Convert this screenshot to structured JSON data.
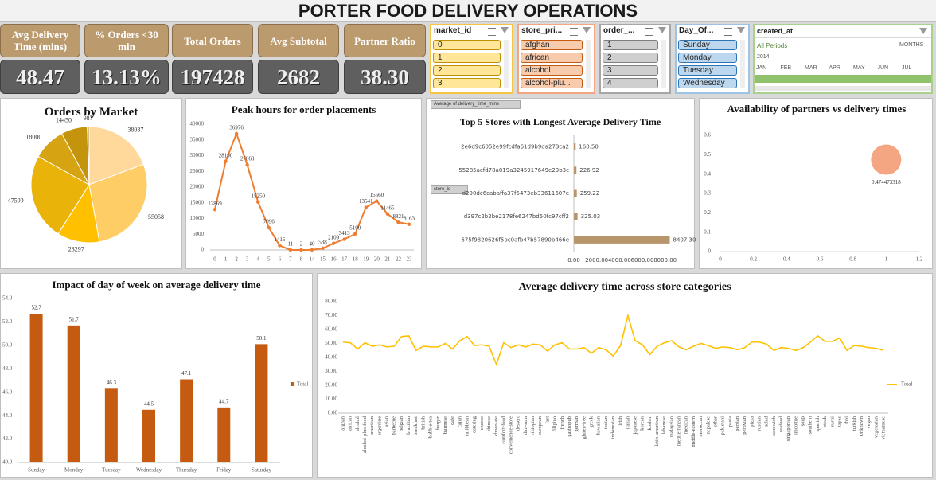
{
  "title": "PORTER FOOD DELIVERY OPERATIONS",
  "kpis": [
    {
      "label": "Avg Delivery Time (mins)",
      "value": "48.47"
    },
    {
      "label": "% Orders <30 min",
      "value": "13.13%"
    },
    {
      "label": "Total Orders",
      "value": "197428"
    },
    {
      "label": "Avg Subtotal",
      "value": "2682"
    },
    {
      "label": "Partner Ratio",
      "value": "38.30"
    }
  ],
  "slicers": [
    {
      "field": "market_id",
      "items": [
        "0",
        "1",
        "2",
        "3"
      ]
    },
    {
      "field": "store_pri...",
      "items": [
        "afghan",
        "african",
        "alcohol",
        "alcohol-plu..."
      ]
    },
    {
      "field": "order_...",
      "items": [
        "1",
        "2",
        "3",
        "4"
      ]
    },
    {
      "field": "Day_Of...",
      "items": [
        "Sunday",
        "Monday",
        "Tuesday",
        "Wednesday"
      ]
    }
  ],
  "timeline": {
    "field": "created_at",
    "period": "All Periods",
    "level": "MONTHS",
    "year": "2014",
    "months": [
      "JAN",
      "FEB",
      "MAR",
      "APR",
      "MAY",
      "JUN",
      "JUL"
    ]
  },
  "chart_data": [
    {
      "type": "pie",
      "title": "Orders by Market",
      "values": [
        38037,
        55058,
        23297,
        47599,
        18000,
        14450,
        987
      ],
      "colors": [
        "#ffd99c",
        "#ffcd66",
        "#ffc000",
        "#e9b30a",
        "#d6a312",
        "#c4950c",
        "#a87f05"
      ]
    },
    {
      "type": "line",
      "title": "Peak hours for order placements",
      "categories": [
        0,
        1,
        2,
        3,
        4,
        5,
        6,
        7,
        8,
        14,
        15,
        16,
        17,
        18,
        19,
        20,
        21,
        22,
        23
      ],
      "values": [
        12869,
        28190,
        36976,
        27068,
        15250,
        7096,
        1416,
        11,
        2,
        40,
        538,
        2109,
        3413,
        5100,
        13541,
        15560,
        11465,
        8821,
        8163
      ],
      "color": "#ed7d31",
      "data_labels": true,
      "ylim": [
        0,
        40000
      ],
      "yticks": [
        0,
        5000,
        10000,
        15000,
        20000,
        25000,
        30000,
        35000,
        40000
      ]
    },
    {
      "type": "hbar",
      "title": "Top 5 Stores with Longest Average Delivery Time",
      "value_field": "Average of delivery_time_mins",
      "category_field": "store_id",
      "categories": [
        "2e6d9c6052e99fcdfa61d9b9da273ca2",
        "55285acfd78a019a3245917649e29b3c",
        "d290dc6cabaffa37f5473eb33611607e",
        "d397c2b2be2178fe6247bd50fc97cff2",
        "675f9820626f5bc0afb47b57890b466e"
      ],
      "values": [
        160.5,
        226.92,
        259.22,
        325.03,
        8407.3
      ],
      "value_labels": [
        "160.50",
        "226.92",
        "259.22",
        "325.03",
        "8407.30"
      ],
      "color": "#b8966b",
      "xlim": [
        0,
        9000
      ],
      "xticks": [
        {
          "value": 0,
          "label": "0.00"
        },
        {
          "value": 2000,
          "label": "2000.00"
        },
        {
          "value": 4000,
          "label": "4000.00"
        },
        {
          "value": 6000,
          "label": "6000.00"
        },
        {
          "value": 8000,
          "label": "8000.00"
        }
      ]
    },
    {
      "type": "scatter",
      "title": "Availability of partners vs delivery times",
      "x": [
        1
      ],
      "values": [
        0.474473318
      ],
      "color": "#f4a582",
      "xlim": [
        0,
        1.2
      ],
      "xticks": [
        0,
        0.2,
        0.4,
        0.6,
        0.8,
        1,
        1.2
      ],
      "ylim": [
        0,
        0.6
      ],
      "yticks": [
        0,
        0.1,
        0.2,
        0.3,
        0.4,
        0.5,
        0.6
      ]
    },
    {
      "type": "bar",
      "title": "Impact of day of week on average delivery time",
      "categories": [
        "Sunday",
        "Monday",
        "Tuesday",
        "Wednesday",
        "Thursday",
        "Friday",
        "Saturday"
      ],
      "series": [
        {
          "name": "Total",
          "color": "#c55a11",
          "values": [
            52.7,
            51.7,
            46.3,
            44.5,
            47.1,
            44.7,
            50.1
          ]
        }
      ],
      "ylim": [
        40,
        54
      ],
      "yticks": [
        {
          "value": 40,
          "label": "40.0"
        },
        {
          "value": 42,
          "label": "42.0"
        },
        {
          "value": 44,
          "label": "44.0"
        },
        {
          "value": 46,
          "label": "46.0"
        },
        {
          "value": 48,
          "label": "48.0"
        },
        {
          "value": 50,
          "label": "50.0"
        },
        {
          "value": 52,
          "label": "52.0"
        },
        {
          "value": 54,
          "label": "54.0"
        }
      ]
    },
    {
      "type": "line",
      "title": "Average delivery time across store categories",
      "categories": [
        "afghan",
        "african",
        "alcohol",
        "alcohol-plus-food",
        "american",
        "argentine",
        "asian",
        "barbecue",
        "belgian",
        "brazilian",
        "breakfast",
        "british",
        "bubble-tea",
        "burger",
        "burmese",
        "cafe",
        "cajun",
        "caribbean",
        "catering",
        "cheese",
        "chinese",
        "chocolate",
        "comfort-food",
        "convenience-store",
        "dessert",
        "dim-sum",
        "ethiopian",
        "european",
        "fast",
        "filipino",
        "french",
        "gastropub",
        "german",
        "gluten-free",
        "greek",
        "hawaiian",
        "indian",
        "indonesian",
        "irish",
        "italian",
        "japanese",
        "korean",
        "kosher",
        "latin-american",
        "lebanese",
        "malaysian",
        "mediterranean",
        "mexican",
        "middle-eastern",
        "moroccan",
        "nepalese",
        "other",
        "pakistani",
        "pasta",
        "persian",
        "peruvian",
        "pizza",
        "russian",
        "salad",
        "sandwich",
        "seafood",
        "singaporean",
        "smoothie",
        "soup",
        "southern",
        "spanish",
        "steak",
        "sushi",
        "tapas",
        "thai",
        "turkish",
        "Unknown",
        "vegan",
        "vegetarian",
        "vietnamese"
      ],
      "series": [
        {
          "name": "Total",
          "color": "#ffc000",
          "values": [
            51,
            50.5,
            46,
            50.5,
            48,
            49,
            47.5,
            48,
            55,
            55.5,
            45,
            48,
            47.5,
            47.5,
            50,
            46,
            52,
            55,
            48.5,
            49,
            48,
            35,
            50.5,
            47,
            49,
            47.5,
            49.5,
            49,
            44.5,
            49,
            50.5,
            46,
            46,
            47,
            43,
            47,
            45.5,
            41,
            48.5,
            70,
            52,
            49,
            42,
            48,
            50.5,
            52,
            47.5,
            45.5,
            48,
            50,
            48.5,
            46.5,
            47.5,
            47,
            45.5,
            47,
            51,
            51,
            49.5,
            45,
            47,
            46.5,
            45,
            47,
            51,
            55.5,
            51.5,
            51.5,
            54,
            45,
            48.5,
            48,
            47,
            46.5,
            45
          ]
        }
      ],
      "ylim": [
        0,
        80
      ],
      "yticks": [
        {
          "value": 0,
          "label": "0.00"
        },
        {
          "value": 10,
          "label": "10.00"
        },
        {
          "value": 20,
          "label": "20.00"
        },
        {
          "value": 30,
          "label": "30.00"
        },
        {
          "value": 40,
          "label": "40.00"
        },
        {
          "value": 50,
          "label": "50.00"
        },
        {
          "value": 60,
          "label": "60.00"
        },
        {
          "value": 70,
          "label": "70.00"
        },
        {
          "value": 80,
          "label": "80.00"
        }
      ]
    }
  ]
}
